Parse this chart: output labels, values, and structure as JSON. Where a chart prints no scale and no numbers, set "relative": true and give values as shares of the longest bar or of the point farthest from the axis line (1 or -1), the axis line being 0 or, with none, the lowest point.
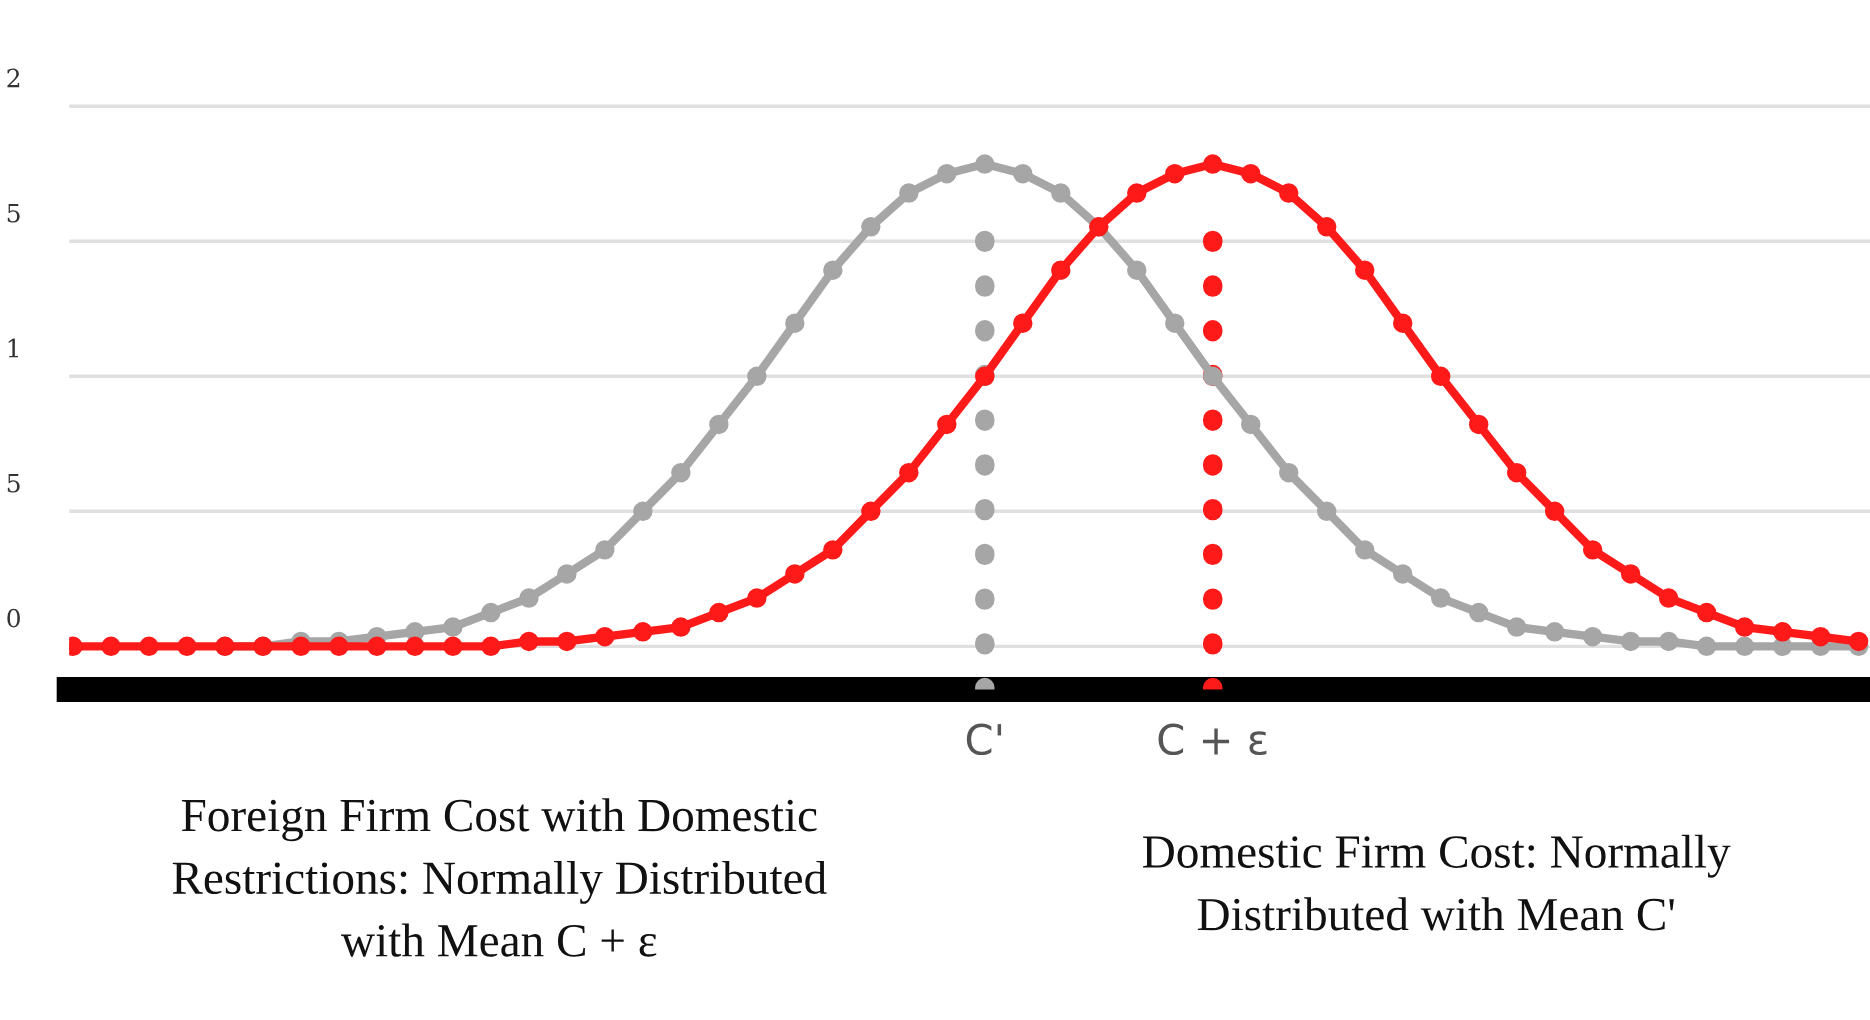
{
  "chart_data": {
    "type": "line",
    "relative": true,
    "marker": "circle",
    "line_style": "solid",
    "legend": false,
    "categories": [
      null,
      null,
      null,
      null,
      null,
      null,
      null,
      null,
      null,
      null,
      null,
      null,
      null,
      null,
      null,
      null,
      null,
      null,
      null,
      null,
      null,
      null,
      null,
      null,
      "C'",
      null,
      null,
      null,
      null,
      null,
      "C + ε",
      null,
      null,
      null,
      null,
      null,
      null,
      null,
      null,
      null,
      null,
      null,
      null,
      null,
      null,
      null,
      null,
      null
    ],
    "series": [
      {
        "color": "#a6a6a6",
        "values": [
          null,
          null,
          null,
          null,
          0,
          0,
          0.01,
          0.01,
          0.02,
          0.03,
          0.04,
          0.07,
          0.1,
          0.15,
          0.2,
          0.28,
          0.36,
          0.46,
          0.56,
          0.67,
          0.78,
          0.87,
          0.94,
          0.98,
          1,
          0.98,
          0.94,
          0.87,
          0.78,
          0.67,
          0.56,
          0.46,
          0.36,
          0.28,
          0.2,
          0.15,
          0.1,
          0.07,
          0.04,
          0.03,
          0.02,
          0.01,
          0.01,
          0,
          0,
          0,
          0,
          0
        ]
      },
      {
        "color": "#ff1a1a",
        "values": [
          0,
          0,
          0,
          0,
          0,
          0,
          0,
          0,
          0,
          0,
          0,
          0,
          0.01,
          0.01,
          0.02,
          0.03,
          0.04,
          0.07,
          0.1,
          0.15,
          0.2,
          0.28,
          0.36,
          0.46,
          0.56,
          0.67,
          0.78,
          0.87,
          0.94,
          0.98,
          1,
          0.98,
          0.94,
          0.87,
          0.78,
          0.67,
          0.56,
          0.46,
          0.36,
          0.28,
          0.2,
          0.15,
          0.1,
          0.07,
          0.04,
          0.03,
          0.02,
          0.01
        ]
      }
    ],
    "ref_lines": [
      {
        "axis": "y",
        "value": 1.12,
        "color": "#e0e0e0",
        "line_style": "solid"
      },
      {
        "axis": "y",
        "value": 0.84,
        "color": "#e0e0e0",
        "line_style": "solid"
      },
      {
        "axis": "y",
        "value": 0.56,
        "color": "#e0e0e0",
        "line_style": "solid"
      },
      {
        "axis": "y",
        "value": 0.28,
        "color": "#e0e0e0",
        "line_style": "solid"
      },
      {
        "axis": "y",
        "value": 0,
        "color": "#e0e0e0",
        "line_style": "solid"
      },
      {
        "axis": "x",
        "value": "C'",
        "color": "#a6a6a6",
        "line_style": "dotted"
      },
      {
        "axis": "x",
        "value": "C + ε",
        "color": "#ff1a1a",
        "line_style": "dotted"
      }
    ],
    "annotations": [
      "2",
      "5",
      "1",
      "5",
      "0",
      "Foreign Firm Cost with Domestic\nRestrictions: Normally Distributed\nwith Mean C + ε",
      "Domestic Firm Cost: Normally\nDistributed with Mean C'"
    ]
  }
}
